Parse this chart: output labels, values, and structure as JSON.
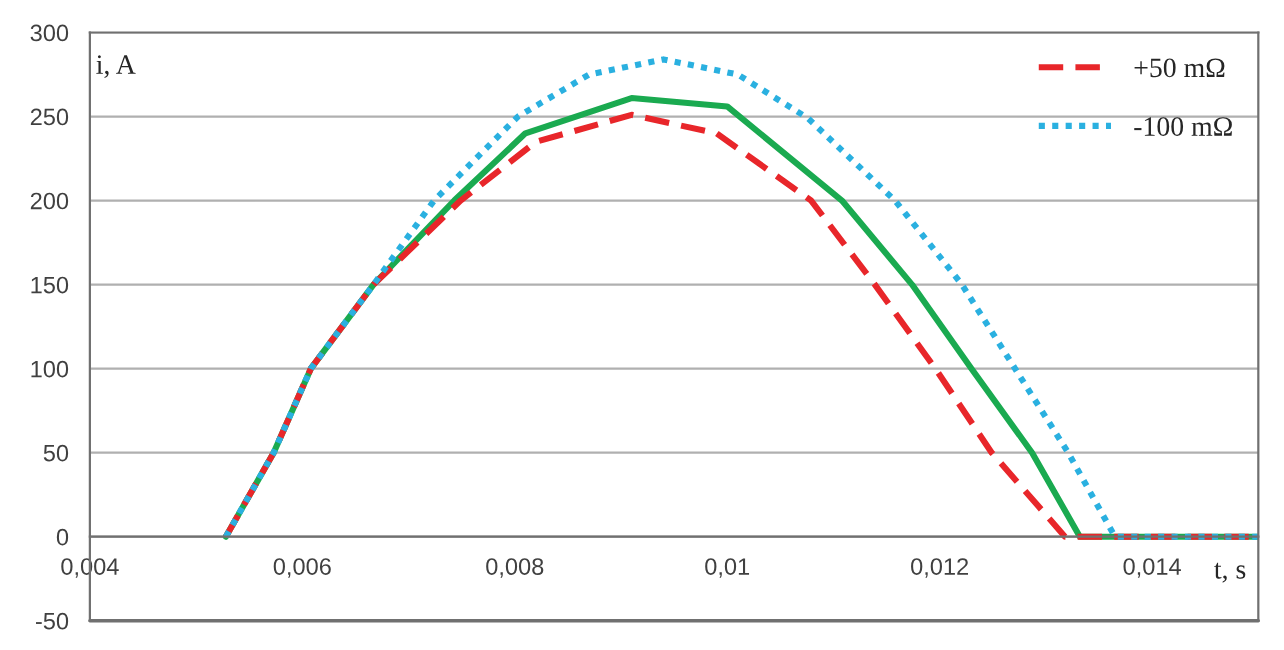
{
  "chart_data": {
    "type": "line",
    "xlabel": "t, s",
    "ylabel": "i, A",
    "xlim": [
      0.004,
      0.015
    ],
    "ylim": [
      -50,
      300
    ],
    "xticks": [
      {
        "value": 0.004,
        "label": "0,004"
      },
      {
        "value": 0.006,
        "label": "0,006"
      },
      {
        "value": 0.008,
        "label": "0,008"
      },
      {
        "value": 0.01,
        "label": "0,01"
      },
      {
        "value": 0.012,
        "label": "0,012"
      },
      {
        "value": 0.014,
        "label": "0,014"
      }
    ],
    "yticks": [
      -50,
      0,
      50,
      100,
      150,
      200,
      250,
      300
    ],
    "grid": "y",
    "legend": "top right",
    "marker": "none",
    "series": [
      {
        "color": "#1aaa50",
        "line_style": "solid",
        "x": [
          0.00528,
          0.00573,
          0.00608,
          0.00667,
          0.00743,
          0.0081,
          0.0091,
          0.01,
          0.01108,
          0.01174,
          0.0123,
          0.01287,
          0.01332,
          0.015
        ],
        "values": [
          0,
          50,
          100,
          150,
          200,
          240,
          261,
          256,
          200,
          150,
          100,
          50,
          0,
          0
        ]
      },
      {
        "name": "+50 mΩ",
        "color": "#e8262a",
        "line_style": "dashed",
        "x": [
          0.00528,
          0.00573,
          0.00608,
          0.00667,
          0.00749,
          0.0082,
          0.0091,
          0.0099,
          0.01079,
          0.01139,
          0.01196,
          0.01249,
          0.01318,
          0.015
        ],
        "values": [
          0,
          50,
          100,
          150,
          200,
          235,
          251,
          240,
          200,
          150,
          100,
          50,
          0,
          0
        ]
      },
      {
        "name": "-100 mΩ",
        "color": "#2ab0e0",
        "line_style": "dotted",
        "x": [
          0.00528,
          0.00573,
          0.00608,
          0.00667,
          0.00724,
          0.00803,
          0.0087,
          0.0094,
          0.0101,
          0.01076,
          0.01158,
          0.01221,
          0.01271,
          0.01321,
          0.01365,
          0.015
        ],
        "values": [
          0,
          50,
          100,
          150,
          200,
          250,
          275,
          284,
          275,
          249,
          200,
          150,
          100,
          50,
          0,
          0
        ]
      }
    ]
  }
}
